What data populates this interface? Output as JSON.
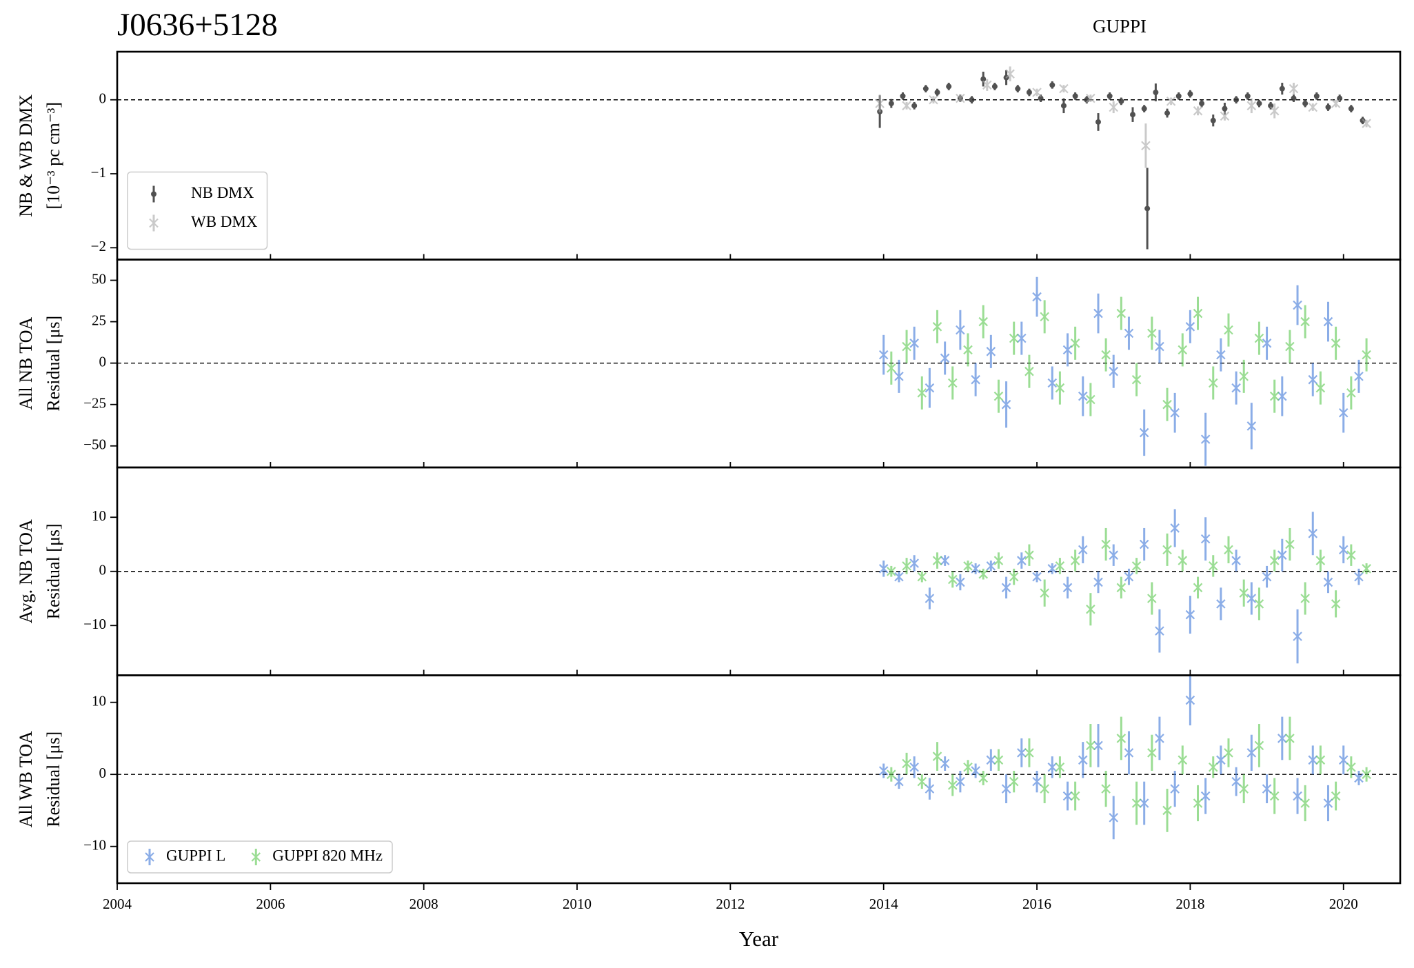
{
  "chart_data": [
    {
      "type": "scatter",
      "title": "J0636+5128",
      "subtitle": "GUPPI",
      "ylabel": [
        "NB & WB DMX",
        "[10⁻³ pc cm⁻³]"
      ],
      "ylim": [
        -2.16,
        0.65
      ],
      "yticks": [
        0,
        {
          "value": -1,
          "label": "−1"
        },
        {
          "value": -2,
          "label": "−2"
        }
      ],
      "hline": 0,
      "legend": "lower left",
      "series": [
        {
          "name": "NB DMX",
          "color": "#333333",
          "marker": "dot",
          "x": [
            2013.95,
            2014.1,
            2014.25,
            2014.4,
            2014.55,
            2014.7,
            2014.85,
            2015.0,
            2015.15,
            2015.3,
            2015.45,
            2015.6,
            2015.75,
            2015.9,
            2016.05,
            2016.2,
            2016.35,
            2016.5,
            2016.65,
            2016.8,
            2016.95,
            2017.1,
            2017.25,
            2017.4,
            2017.44,
            2017.55,
            2017.7,
            2017.85,
            2018.0,
            2018.15,
            2018.3,
            2018.45,
            2018.6,
            2018.75,
            2018.9,
            2019.05,
            2019.2,
            2019.35,
            2019.5,
            2019.65,
            2019.8,
            2019.95,
            2020.1,
            2020.25
          ],
          "values": [
            -0.16,
            -0.05,
            0.05,
            -0.08,
            0.15,
            0.1,
            0.18,
            0.02,
            0.0,
            0.28,
            0.18,
            0.3,
            0.15,
            0.1,
            0.02,
            0.2,
            -0.08,
            0.05,
            0.0,
            -0.3,
            0.05,
            -0.02,
            -0.2,
            -0.12,
            -1.47,
            0.1,
            -0.18,
            0.05,
            0.08,
            -0.05,
            -0.28,
            -0.12,
            0.0,
            0.05,
            -0.05,
            -0.08,
            0.15,
            0.02,
            -0.05,
            0.05,
            -0.1,
            0.02,
            -0.12,
            -0.28
          ],
          "errors": [
            0.22,
            0.06,
            0.05,
            0.05,
            0.05,
            0.05,
            0.05,
            0.05,
            0.05,
            0.1,
            0.05,
            0.1,
            0.05,
            0.05,
            0.05,
            0.05,
            0.1,
            0.05,
            0.05,
            0.12,
            0.05,
            0.05,
            0.1,
            0.05,
            0.55,
            0.12,
            0.06,
            0.05,
            0.05,
            0.05,
            0.08,
            0.08,
            0.05,
            0.05,
            0.05,
            0.05,
            0.08,
            0.05,
            0.05,
            0.05,
            0.05,
            0.05,
            0.05,
            0.05
          ]
        },
        {
          "name": "WB DMX",
          "color": "#a8a8a8",
          "marker": "cross",
          "x": [
            2013.95,
            2014.3,
            2014.65,
            2015.0,
            2015.35,
            2015.65,
            2016.0,
            2016.35,
            2016.7,
            2017.0,
            2017.42,
            2017.75,
            2018.1,
            2018.45,
            2018.8,
            2019.1,
            2019.35,
            2019.6,
            2019.9,
            2020.3
          ],
          "values": [
            -0.05,
            -0.08,
            0.0,
            0.02,
            0.2,
            0.35,
            0.1,
            0.15,
            0.02,
            -0.1,
            -0.62,
            -0.02,
            -0.15,
            -0.22,
            -0.08,
            -0.15,
            0.15,
            -0.1,
            -0.05,
            -0.32
          ],
          "errors": [
            0.12,
            0.05,
            0.05,
            0.05,
            0.08,
            0.1,
            0.05,
            0.05,
            0.05,
            0.08,
            0.3,
            0.05,
            0.06,
            0.06,
            0.1,
            0.1,
            0.08,
            0.05,
            0.05,
            0.05
          ]
        }
      ]
    },
    {
      "type": "scatter",
      "ylabel": [
        "All NB TOA",
        "Residual [μs]"
      ],
      "ylim": [
        -63,
        62.5
      ],
      "yticks": [
        50,
        25,
        0,
        {
          "value": -25,
          "label": "−25"
        },
        {
          "value": -50,
          "label": "−50"
        }
      ],
      "hline": 0,
      "series": [
        {
          "name": "GUPPI L",
          "color": "#3f78d8",
          "marker": "cross",
          "x": [
            2014.0,
            2014.2,
            2014.4,
            2014.6,
            2014.8,
            2015.0,
            2015.2,
            2015.4,
            2015.6,
            2015.8,
            2016.0,
            2016.2,
            2016.4,
            2016.6,
            2016.8,
            2017.0,
            2017.2,
            2017.4,
            2017.6,
            2017.8,
            2018.0,
            2018.2,
            2018.4,
            2018.6,
            2018.8,
            2019.0,
            2019.2,
            2019.4,
            2019.6,
            2019.8,
            2020.0,
            2020.2
          ],
          "values": [
            5,
            -8,
            12,
            -15,
            3,
            20,
            -10,
            7,
            -25,
            15,
            40,
            -12,
            8,
            -20,
            30,
            -5,
            18,
            -42,
            10,
            -30,
            22,
            -46,
            5,
            -15,
            -38,
            12,
            -20,
            35,
            -10,
            25,
            -30,
            -8
          ],
          "errors": [
            12,
            10,
            10,
            12,
            10,
            12,
            10,
            10,
            14,
            10,
            12,
            10,
            10,
            12,
            12,
            10,
            10,
            14,
            10,
            12,
            10,
            16,
            10,
            10,
            14,
            10,
            12,
            12,
            10,
            12,
            12,
            10
          ]
        },
        {
          "name": "GUPPI 820 MHz",
          "color": "#59c84e",
          "marker": "cross",
          "x": [
            2014.1,
            2014.3,
            2014.5,
            2014.7,
            2014.9,
            2015.1,
            2015.3,
            2015.5,
            2015.7,
            2015.9,
            2016.1,
            2016.3,
            2016.5,
            2016.7,
            2016.9,
            2017.1,
            2017.3,
            2017.5,
            2017.7,
            2017.9,
            2018.1,
            2018.3,
            2018.5,
            2018.7,
            2018.9,
            2019.1,
            2019.3,
            2019.5,
            2019.7,
            2019.9,
            2020.1,
            2020.3
          ],
          "values": [
            -3,
            10,
            -18,
            22,
            -12,
            8,
            25,
            -20,
            15,
            -5,
            28,
            -15,
            12,
            -22,
            5,
            30,
            -10,
            18,
            -25,
            8,
            30,
            -12,
            20,
            -8,
            15,
            -20,
            10,
            25,
            -15,
            12,
            -18,
            5
          ],
          "errors": [
            10,
            10,
            10,
            10,
            10,
            10,
            10,
            10,
            10,
            10,
            10,
            10,
            10,
            10,
            10,
            10,
            10,
            10,
            10,
            10,
            10,
            10,
            10,
            10,
            10,
            10,
            10,
            10,
            10,
            10,
            10,
            10
          ]
        }
      ]
    },
    {
      "type": "scatter",
      "ylabel": [
        "Avg. NB TOA",
        "Residual [μs]"
      ],
      "ylim": [
        -19.2,
        19.2
      ],
      "yticks": [
        10,
        0,
        {
          "value": -10,
          "label": "−10"
        }
      ],
      "hline": 0,
      "series": [
        {
          "name": "GUPPI L",
          "color": "#3f78d8",
          "marker": "cross",
          "x": [
            2014.0,
            2014.2,
            2014.4,
            2014.6,
            2014.8,
            2015.0,
            2015.2,
            2015.4,
            2015.6,
            2015.8,
            2016.0,
            2016.2,
            2016.4,
            2016.6,
            2016.8,
            2017.0,
            2017.2,
            2017.4,
            2017.6,
            2017.8,
            2018.0,
            2018.2,
            2018.4,
            2018.6,
            2018.8,
            2019.0,
            2019.2,
            2019.4,
            2019.6,
            2019.8,
            2020.0,
            2020.2
          ],
          "values": [
            0.5,
            -1,
            1.5,
            -5,
            2,
            -2,
            0.5,
            1,
            -3,
            2,
            -1,
            0.5,
            -3,
            4,
            -2,
            3,
            -1,
            5,
            -11,
            8,
            -8,
            6,
            -6,
            2,
            -5,
            -1,
            3,
            -12,
            7,
            -2,
            4,
            -1
          ],
          "errors": [
            1.5,
            1,
            1.5,
            2,
            1,
            1.5,
            1,
            1,
            2,
            1.5,
            1,
            1,
            2,
            2.5,
            2,
            2,
            1.5,
            3,
            4,
            3.5,
            3.5,
            4,
            3,
            2,
            3,
            2,
            3,
            5,
            4,
            2,
            2.5,
            1.5
          ]
        },
        {
          "name": "GUPPI 820 MHz",
          "color": "#59c84e",
          "marker": "cross",
          "x": [
            2014.1,
            2014.3,
            2014.5,
            2014.7,
            2014.9,
            2015.1,
            2015.3,
            2015.5,
            2015.7,
            2015.9,
            2016.1,
            2016.3,
            2016.5,
            2016.7,
            2016.9,
            2017.1,
            2017.3,
            2017.5,
            2017.7,
            2017.9,
            2018.1,
            2018.3,
            2018.5,
            2018.7,
            2018.9,
            2019.1,
            2019.3,
            2019.5,
            2019.7,
            2019.9,
            2020.1,
            2020.3
          ],
          "values": [
            0,
            1,
            -1,
            2,
            -1.5,
            1,
            -0.5,
            2,
            -1,
            3,
            -4,
            1,
            2,
            -7,
            5,
            -3,
            1,
            -5,
            4,
            2,
            -3,
            1,
            4,
            -4,
            -6,
            2,
            5,
            -5,
            2,
            -6,
            3,
            0.5
          ],
          "errors": [
            1,
            1.5,
            1,
            1.5,
            1.5,
            1,
            1,
            1.5,
            1.5,
            2,
            2.5,
            1.5,
            2,
            3,
            3,
            2,
            1.5,
            3,
            3,
            2,
            2,
            2,
            2.5,
            2.5,
            3,
            2,
            3,
            3,
            2,
            2.5,
            2,
            1
          ]
        }
      ]
    },
    {
      "type": "scatter",
      "ylabel": [
        "All WB TOA",
        "Residual [μs]"
      ],
      "xlabel": "Year",
      "ylim": [
        -15.1,
        13.75
      ],
      "yticks": [
        10,
        0,
        {
          "value": -10,
          "label": "−10"
        }
      ],
      "hline": 0,
      "legend": "lower left",
      "xlim": [
        2004,
        2020.74
      ],
      "xticks": [
        2004,
        2006,
        2008,
        2010,
        2012,
        2014,
        2016,
        2018,
        2020
      ],
      "series": [
        {
          "name": "GUPPI L",
          "color": "#3f78d8",
          "marker": "cross",
          "x": [
            2014.0,
            2014.2,
            2014.4,
            2014.6,
            2014.8,
            2015.0,
            2015.2,
            2015.4,
            2015.6,
            2015.8,
            2016.0,
            2016.2,
            2016.4,
            2016.6,
            2016.8,
            2017.0,
            2017.2,
            2017.4,
            2017.6,
            2017.8,
            2018.0,
            2018.2,
            2018.4,
            2018.6,
            2018.8,
            2019.0,
            2019.2,
            2019.4,
            2019.6,
            2019.8,
            2020.0,
            2020.2
          ],
          "values": [
            0.5,
            -1,
            1,
            -2,
            1.5,
            -1,
            0.5,
            2,
            -2,
            3,
            -1,
            1,
            -3,
            2,
            4,
            -6,
            3,
            -4,
            5,
            -2,
            10.3,
            -3,
            2,
            -1,
            3,
            -2,
            5,
            -3,
            2,
            -4,
            2,
            -0.5
          ],
          "errors": [
            1,
            1,
            1.5,
            1.5,
            1,
            1.5,
            1,
            1.5,
            2,
            2,
            1.5,
            1.5,
            2,
            2.5,
            3,
            3,
            3,
            3,
            3,
            2.5,
            3.5,
            2.5,
            2,
            2,
            2.5,
            2,
            3,
            2.5,
            2,
            2.5,
            2,
            1
          ]
        },
        {
          "name": "GUPPI 820 MHz",
          "color": "#59c84e",
          "marker": "cross",
          "x": [
            2014.1,
            2014.3,
            2014.5,
            2014.7,
            2014.9,
            2015.1,
            2015.3,
            2015.5,
            2015.7,
            2015.9,
            2016.1,
            2016.3,
            2016.5,
            2016.7,
            2016.9,
            2017.1,
            2017.3,
            2017.5,
            2017.7,
            2017.9,
            2018.1,
            2018.3,
            2018.5,
            2018.7,
            2018.9,
            2019.1,
            2019.3,
            2019.5,
            2019.7,
            2019.9,
            2020.1,
            2020.3
          ],
          "values": [
            0,
            1.5,
            -1,
            2.5,
            -1.5,
            1,
            -0.5,
            2,
            -1,
            3,
            -2,
            1,
            -3,
            4,
            -2,
            5,
            -4,
            3,
            -5,
            2,
            -4,
            1,
            3,
            -2,
            4,
            -3,
            5,
            -4,
            2,
            -3,
            1,
            0
          ],
          "errors": [
            1,
            1.5,
            1,
            2,
            1.5,
            1,
            1,
            1.5,
            1.5,
            2,
            2,
            1.5,
            2,
            3,
            2.5,
            3,
            3,
            2.5,
            3,
            2,
            2.5,
            1.5,
            2,
            2,
            3,
            2.5,
            3,
            2.5,
            2,
            2,
            1.5,
            1
          ]
        }
      ]
    }
  ]
}
